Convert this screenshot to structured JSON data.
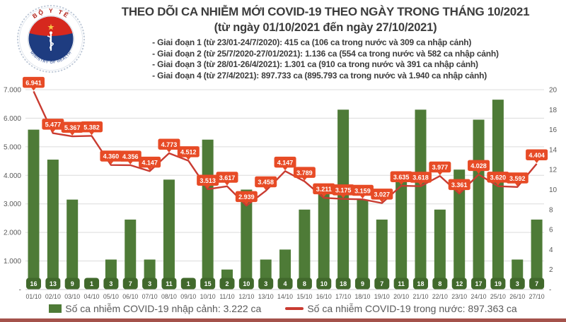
{
  "header": {
    "title": "THEO DÕI CA NHIỄM MỚI COVID-19 THEO NGÀY TRONG THÁNG 10/2021",
    "subtitle": "(từ ngày 01/10/2021 đến ngày 27/10/2021)",
    "stages": [
      "- Giai đoạn 1 (từ 23/01-24/7/2020): 415 ca (106 ca trong nước và 309 ca nhập cảnh)",
      "- Giai đoạn 2 (từ 25/7/2020-27/01/2021): 1.136 ca (554 ca trong nước và 582 ca nhập cảnh)",
      "- Giai đoạn 3 (từ 28/01-26/4/2021): 1.301 ca (910 ca trong nước và 391 ca nhập cảnh)",
      "- Giai đoạn 4 (từ 27/4/2021): 897.733 ca (895.793 ca trong nước và 1.940 ca nhập cảnh)"
    ],
    "logo": {
      "top_text": "BỘ Y TẾ",
      "bottom_text": "MINISTRY OF HEALTH"
    }
  },
  "chart_data": {
    "type": "bar+line",
    "categories": [
      "01/10",
      "02/10",
      "03/10",
      "04/10",
      "05/10",
      "06/10",
      "07/10",
      "08/10",
      "09/10",
      "10/10",
      "11/10",
      "12/10",
      "13/10",
      "14/10",
      "15/10",
      "16/10",
      "17/10",
      "18/10",
      "19/10",
      "20/10",
      "21/10",
      "22/10",
      "23/10",
      "24/10",
      "25/10",
      "26/10",
      "27/10"
    ],
    "series": [
      {
        "name": "Số ca nhiễm COVID-19 nhập cảnh: 3.222 ca",
        "type": "bar",
        "axis": "right",
        "color": "#4e7b37",
        "label_bg": "#41692c",
        "values": [
          16,
          13,
          9,
          1,
          3,
          7,
          3,
          11,
          1,
          15,
          2,
          10,
          3,
          4,
          8,
          10,
          18,
          9,
          7,
          11,
          18,
          8,
          12,
          17,
          19,
          3,
          7
        ]
      },
      {
        "name": "Số ca nhiễm COVID-19 trong nước: 897.363 ca",
        "type": "line",
        "axis": "left",
        "color": "#c93b31",
        "label_bg": "#e74b26",
        "values": [
          6941,
          5477,
          5367,
          5382,
          4360,
          4356,
          4147,
          4773,
          4512,
          3513,
          3617,
          2939,
          3458,
          4147,
          3789,
          3211,
          3175,
          3159,
          3027,
          3635,
          3618,
          3977,
          3361,
          4028,
          3620,
          3592,
          4404
        ],
        "labels": [
          "6.941",
          "5.477",
          "5.367",
          "5.382",
          "4.360",
          "4.356",
          "4.147",
          "4.773",
          "4.512",
          "3.513",
          "3.617",
          "2.939",
          "3.458",
          "4.147",
          "3.789",
          "3.211",
          "3.175",
          "3.159",
          "3.027",
          "3.635",
          "3.618",
          "3.977",
          "3.361",
          "4.028",
          "3.620",
          "3.592",
          "4.404"
        ]
      }
    ],
    "left_axis": {
      "min": 0,
      "max": 7000,
      "ticks": [
        "7.000",
        "6.000",
        "5.000",
        "4.000",
        "3.000",
        "2.000",
        "1.000",
        "-"
      ]
    },
    "right_axis": {
      "min": 0,
      "max": 20,
      "ticks": [
        "20",
        "18",
        "16",
        "14",
        "12",
        "10",
        "8",
        "6",
        "4",
        "2",
        "-"
      ]
    },
    "grid": true,
    "legend_position": "bottom"
  },
  "colors": {
    "title_text": "#3c3c3c",
    "axis_text": "#595959",
    "gridline": "#dcdcdc",
    "bottom_strip": "#a4524b"
  }
}
